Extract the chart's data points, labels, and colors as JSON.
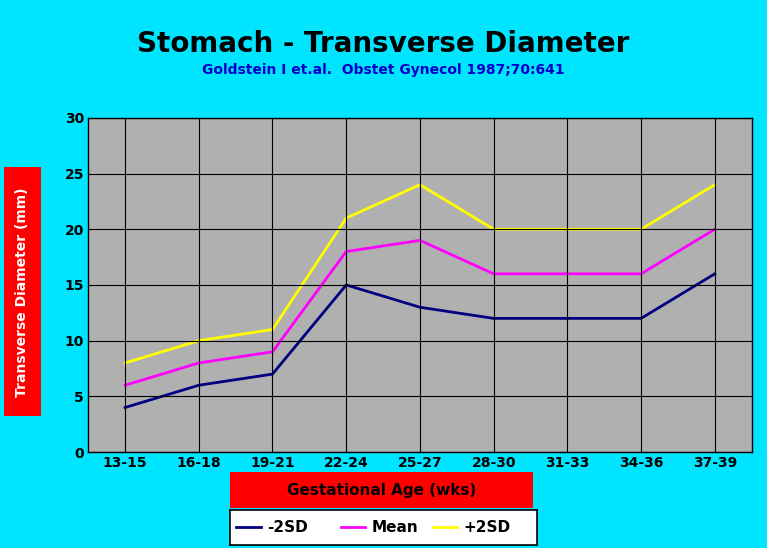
{
  "title": "Stomach - Transverse Diameter",
  "subtitle": "Goldstein I et.al.  Obstet Gynecol 1987;70:641",
  "xlabel": "Gestational Age (wks)",
  "ylabel": "Transverse Diameter (mm)",
  "categories": [
    "13-15",
    "16-18",
    "19-21",
    "22-24",
    "25-27",
    "28-30",
    "31-33",
    "34-36",
    "37-39"
  ],
  "minus2sd": [
    4,
    6,
    7,
    15,
    13,
    12,
    12,
    12,
    16
  ],
  "mean": [
    6,
    8,
    9,
    18,
    19,
    16,
    16,
    16,
    20
  ],
  "plus2sd": [
    8,
    10,
    11,
    21,
    24,
    20,
    20,
    20,
    24
  ],
  "minus2sd_color": "#000080",
  "mean_color": "#ff00ff",
  "plus2sd_color": "#ffff00",
  "bg_outer": "#00e5ff",
  "bg_plot": "#b0b0b0",
  "title_color": "#000000",
  "subtitle_color": "#0000cc",
  "xlabel_bg": "#ff0000",
  "xlabel_color": "#000000",
  "ylabel_bg": "#ff0000",
  "ylabel_color": "#ffffff",
  "ylim": [
    0,
    30
  ],
  "yticks": [
    0,
    5,
    10,
    15,
    20,
    25,
    30
  ],
  "line_width": 2.0,
  "tick_fontsize": 10,
  "title_fontsize": 20,
  "subtitle_fontsize": 10
}
